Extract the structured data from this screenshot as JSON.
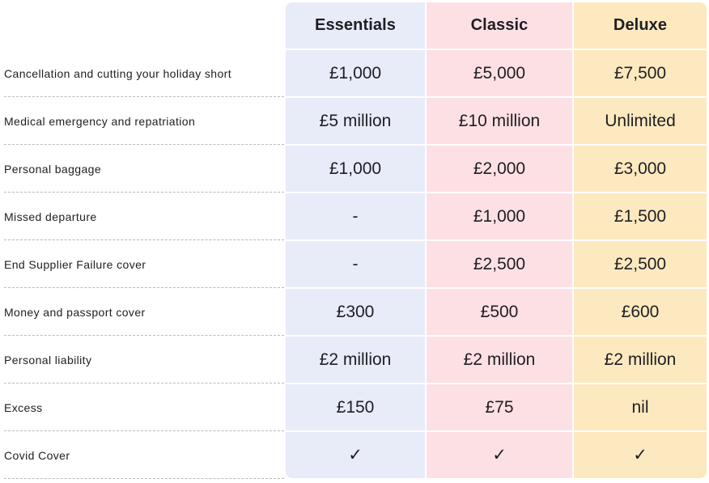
{
  "columns": {
    "essentials": "Essentials",
    "classic": "Classic",
    "deluxe": "Deluxe"
  },
  "rows": [
    {
      "label": "Cancellation and cutting your holiday short",
      "essentials": "£1,000",
      "classic": "£5,000",
      "deluxe": "£7,500"
    },
    {
      "label": "Medical emergency and repatriation",
      "essentials": "£5 million",
      "classic": "£10 million",
      "deluxe": "Unlimited"
    },
    {
      "label": "Personal baggage",
      "essentials": "£1,000",
      "classic": "£2,000",
      "deluxe": "£3,000"
    },
    {
      "label": "Missed departure",
      "essentials": "-",
      "classic": "£1,000",
      "deluxe": "£1,500"
    },
    {
      "label": "End Supplier Failure cover",
      "essentials": "-",
      "classic": "£2,500",
      "deluxe": "£2,500"
    },
    {
      "label": "Money and passport cover",
      "essentials": "£300",
      "classic": "£500",
      "deluxe": "£600"
    },
    {
      "label": "Personal liability",
      "essentials": "£2 million",
      "classic": "£2 million",
      "deluxe": "£2 million"
    },
    {
      "label": "Excess",
      "essentials": "£150",
      "classic": "£75",
      "deluxe": "nil"
    },
    {
      "label": "Covid Cover",
      "essentials": "✓",
      "classic": "✓",
      "deluxe": "✓"
    }
  ],
  "colors": {
    "essentials_bg": "#e8ebf8",
    "classic_bg": "#fde0e4",
    "deluxe_bg": "#fde9bf",
    "text": "#1e1e23",
    "divider": "#b9b9c0"
  }
}
